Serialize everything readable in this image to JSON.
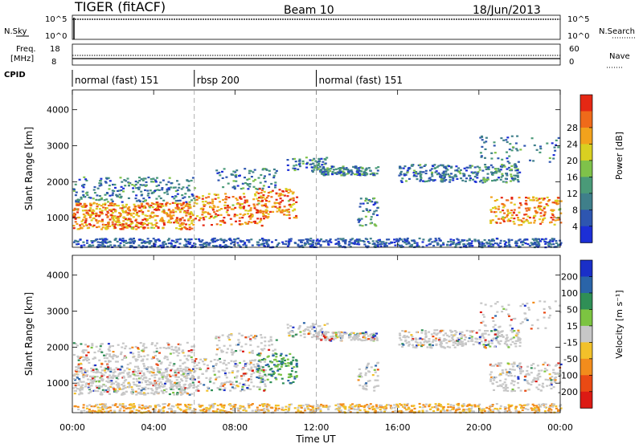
{
  "header": {
    "radar": "TIGER (fitACF)",
    "beam": "Beam 10",
    "date": "18/Jun/2013"
  },
  "top_strips": {
    "nsky_label": "N.Sky",
    "nsky_ticks": [
      "10^5",
      "10^0"
    ],
    "nsearch_label": "N.Search",
    "nsearch_ticks": [
      "10^5",
      "10^0"
    ],
    "freq_label": "Freq.",
    "freq_unit": "[MHz]",
    "freq_ticks": [
      "18",
      "8"
    ],
    "nave_label": "Nave",
    "nave_ticks": [
      "60",
      "0"
    ],
    "cpid_label": "CPID"
  },
  "cpid_segments": [
    {
      "label": "normal (fast) 151",
      "start_hour": 0
    },
    {
      "label": "rbsp 200",
      "start_hour": 6
    },
    {
      "label": "normal (fast) 151",
      "start_hour": 12
    }
  ],
  "chart_data": [
    {
      "type": "heatmap",
      "parameter": "power",
      "ylabel": "Slant Range [km]",
      "xlabel": "Time UT",
      "xlim_hours": [
        0,
        24
      ],
      "ylim_km": [
        180,
        4550
      ],
      "yticks": [
        "1000",
        "2000",
        "3000",
        "4000"
      ],
      "xticks": [
        "00:00",
        "04:00",
        "08:00",
        "12:00",
        "16:00",
        "20:00",
        "00:00"
      ],
      "colorbar": {
        "label": "Power [dB]",
        "ticks": [
          "4",
          "8",
          "12",
          "16",
          "20",
          "24",
          "28"
        ],
        "colors": [
          "#1c2fd6",
          "#2e56b0",
          "#3f7f8a",
          "#4a9a78",
          "#7fc24a",
          "#d9d021",
          "#f2a21c",
          "#ef6a1a",
          "#e52814"
        ]
      }
    },
    {
      "type": "heatmap",
      "parameter": "velocity",
      "ylabel": "Slant Range [km]",
      "xlabel": "Time UT",
      "xlim_hours": [
        0,
        24
      ],
      "ylim_km": [
        180,
        4550
      ],
      "yticks": [
        "1000",
        "2000",
        "3000",
        "4000"
      ],
      "xticks": [
        "00:00",
        "04:00",
        "08:00",
        "12:00",
        "16:00",
        "20:00",
        "00:00"
      ],
      "colorbar": {
        "label": "Velocity [m s⁻¹]",
        "ticks": [
          "200",
          "100",
          "50",
          "15",
          "-15",
          "-50",
          "-100",
          "-200"
        ],
        "colors": [
          "#1a2fc8",
          "#2a64a8",
          "#2f8f56",
          "#7cc441",
          "#c7c7c7",
          "#f2c12a",
          "#f28c1c",
          "#ea4a14",
          "#dc1a14"
        ]
      }
    }
  ]
}
